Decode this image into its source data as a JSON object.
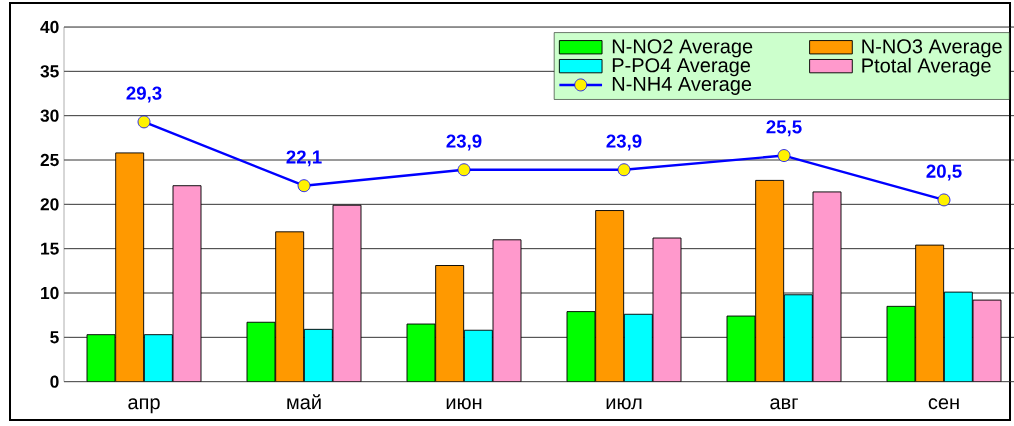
{
  "chart_data": {
    "type": "bar",
    "categories": [
      "апр",
      "май",
      "июн",
      "июл",
      "авг",
      "сен"
    ],
    "series": [
      {
        "name": "N-NO2 Average",
        "color": "#00ff00",
        "values": [
          5.3,
          6.7,
          6.5,
          7.9,
          7.4,
          8.5
        ]
      },
      {
        "name": "N-NO3 Average",
        "color": "#ff9900",
        "values": [
          25.8,
          16.9,
          13.1,
          19.3,
          22.7,
          15.4
        ]
      },
      {
        "name": "P-PO4 Average",
        "color": "#00ffff",
        "values": [
          5.3,
          5.9,
          5.8,
          7.6,
          9.8,
          10.1
        ]
      },
      {
        "name": "Ptotal Average",
        "color": "#ff99cc",
        "values": [
          22.1,
          19.9,
          16.0,
          16.2,
          21.4,
          9.2
        ]
      },
      {
        "name": "N-NH4 Average",
        "type": "line",
        "color": "#0000ff",
        "marker": "circle",
        "values": [
          29.3,
          22.1,
          23.9,
          23.9,
          25.5,
          20.5
        ],
        "value_labels": [
          "29,3",
          "22,1",
          "23,9",
          "23,9",
          "25,5",
          "20,5"
        ]
      }
    ],
    "ylim": [
      0,
      40
    ],
    "yticks": [
      0,
      5,
      10,
      15,
      20,
      25,
      30,
      35,
      40
    ],
    "grid": "y",
    "legend": "top right"
  }
}
